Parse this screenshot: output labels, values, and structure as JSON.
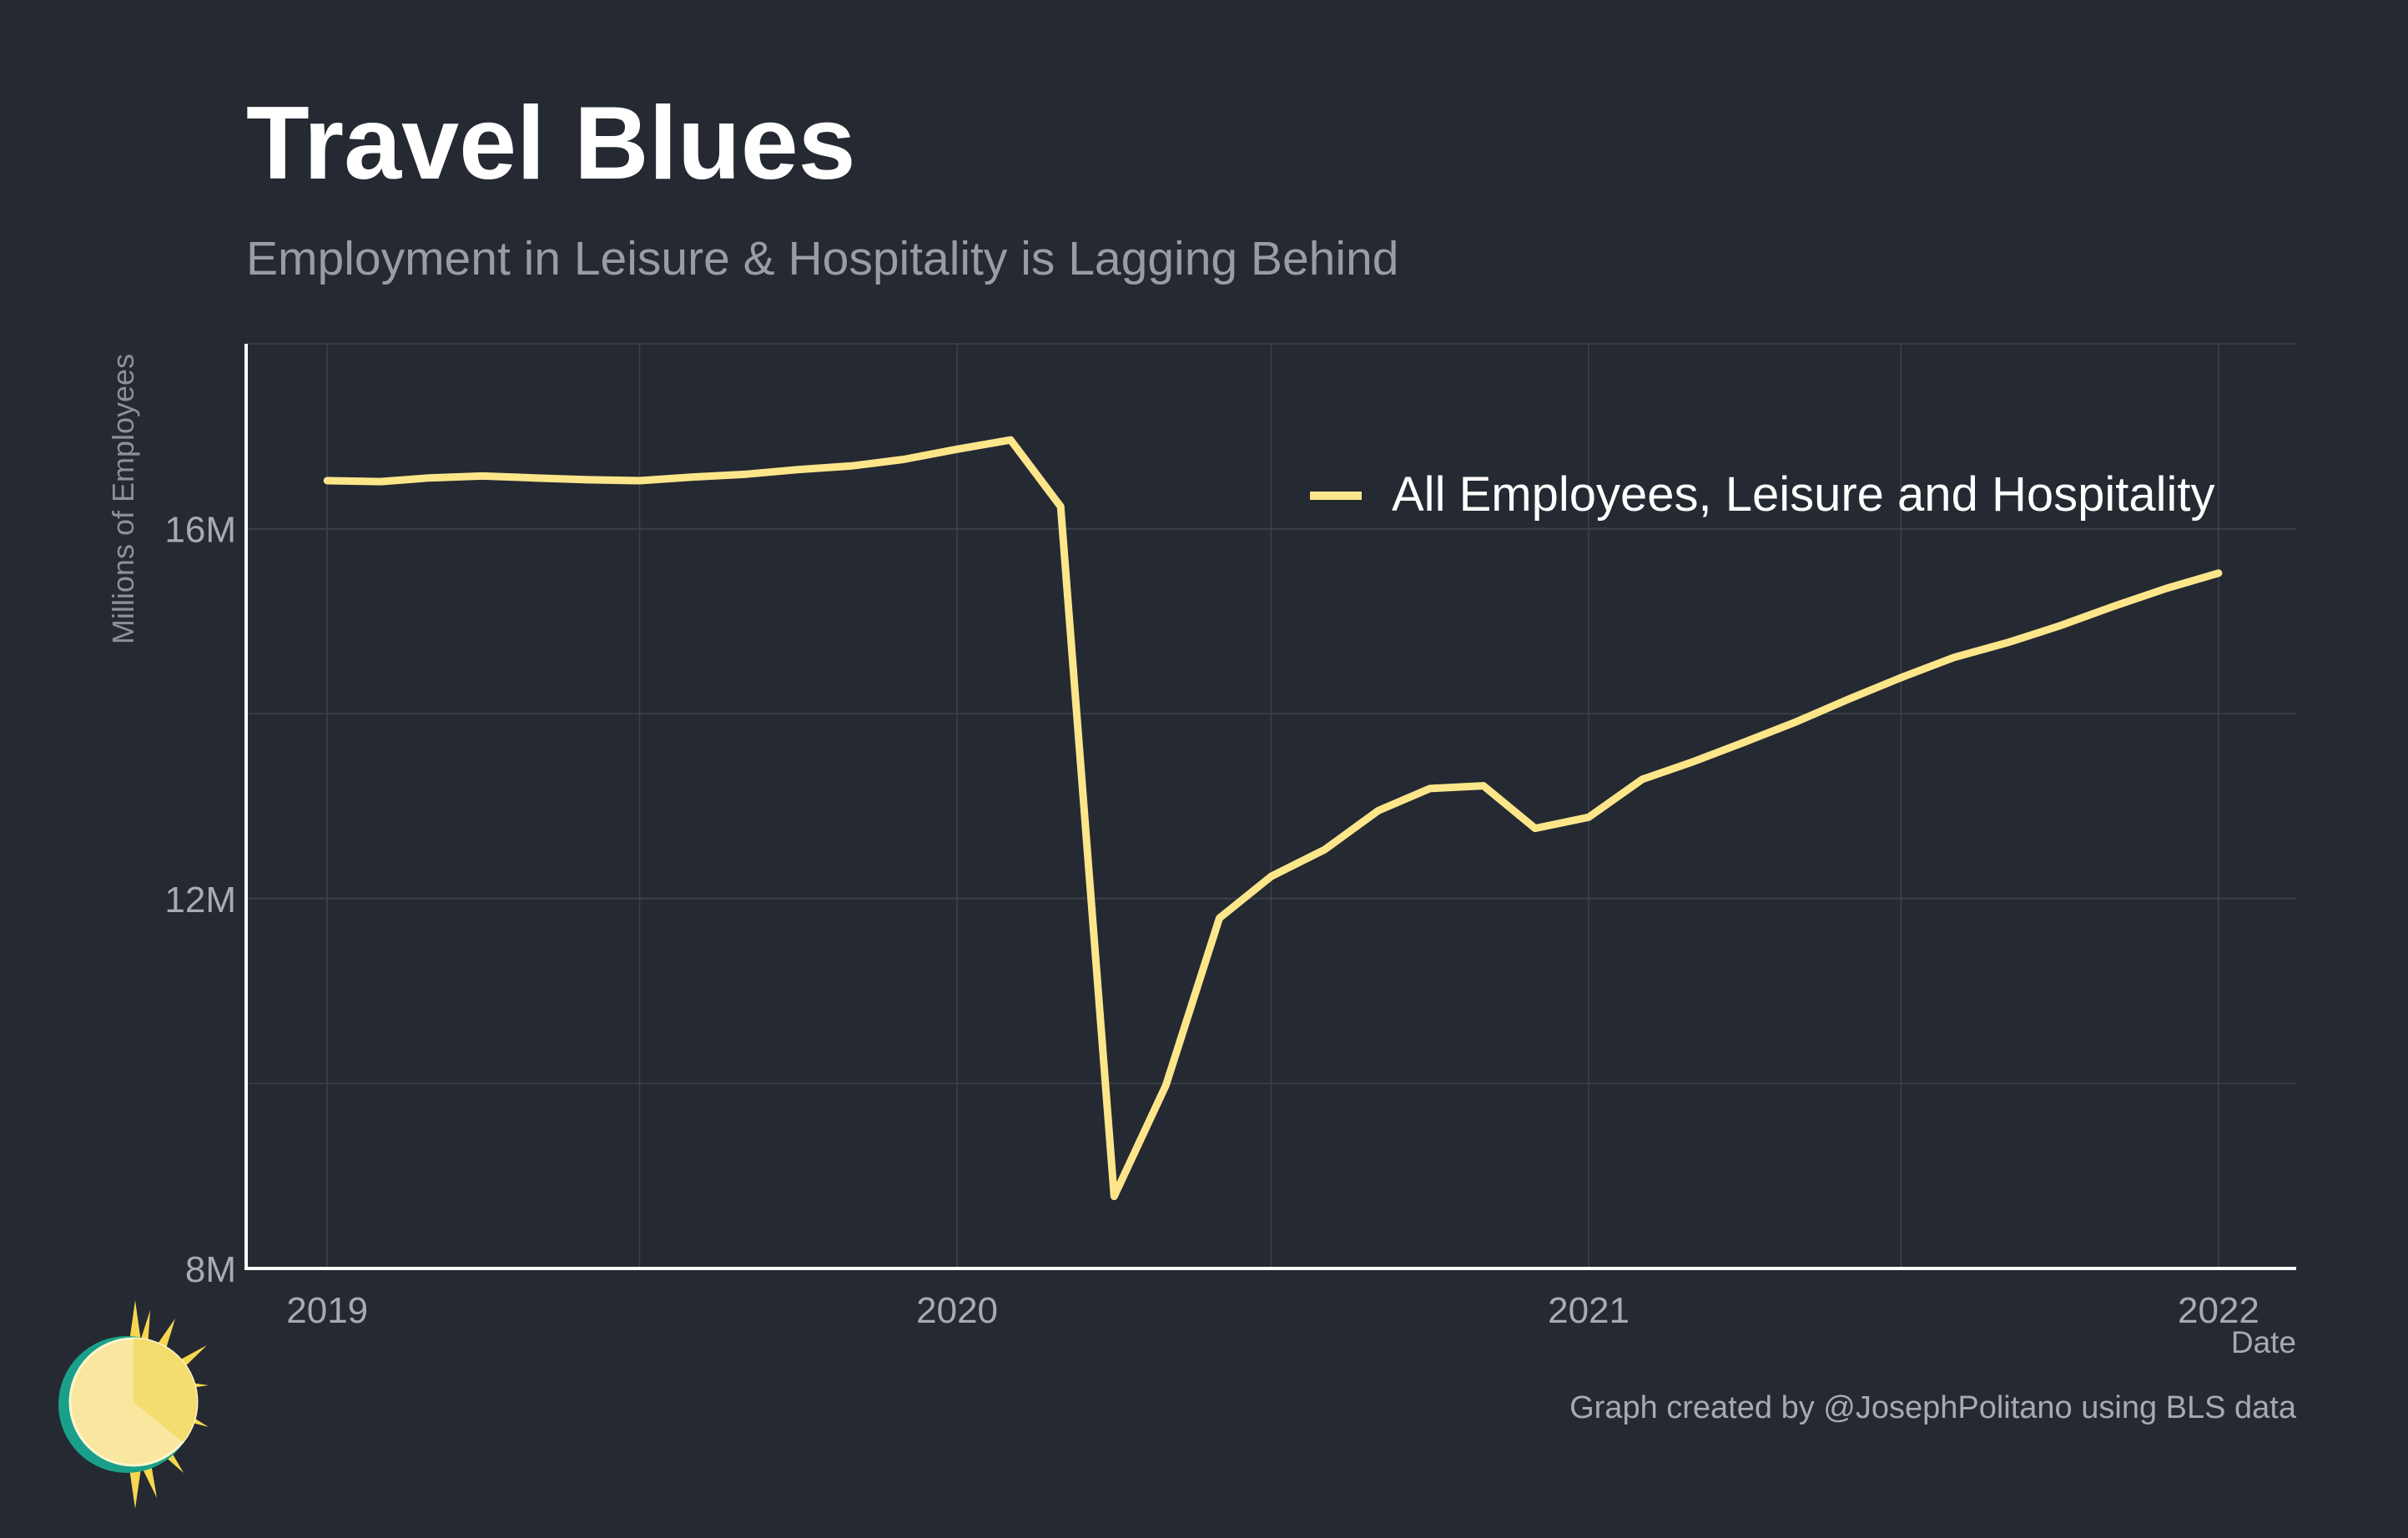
{
  "title": "Travel Blues",
  "subtitle": "Employment in Leisure & Hospitality is Lagging Behind",
  "caption": "Graph created by @JosephPolitano using BLS data",
  "colors": {
    "background": "#252932",
    "line": "#fde68a",
    "grid": "#3d414a",
    "axis": "#ffffff",
    "tick_text": "#a8aab0"
  },
  "chart_data": {
    "type": "line",
    "xlabel": "Date",
    "ylabel": "Millions of Employees",
    "ylim": [
      8,
      18
    ],
    "xlim": [
      "2018-11-15",
      "2022-02-15"
    ],
    "y_ticks": [
      8,
      12,
      16
    ],
    "y_tick_labels": [
      "8M",
      "12M",
      "16M"
    ],
    "x_ticks": [
      "2019-01-01",
      "2020-01-01",
      "2021-01-01",
      "2022-01-01"
    ],
    "x_tick_labels": [
      "2019",
      "2020",
      "2021",
      "2022"
    ],
    "grid": true,
    "legend_position": "top-right",
    "series": [
      {
        "name": "All Employees, Leisure and Hospitality",
        "color": "#fde68a",
        "x": [
          "2019-01",
          "2019-02",
          "2019-03",
          "2019-04",
          "2019-05",
          "2019-06",
          "2019-07",
          "2019-08",
          "2019-09",
          "2019-10",
          "2019-11",
          "2019-12",
          "2020-01",
          "2020-02",
          "2020-03",
          "2020-04",
          "2020-05",
          "2020-06",
          "2020-07",
          "2020-08",
          "2020-09",
          "2020-10",
          "2020-11",
          "2020-12",
          "2021-01",
          "2021-02",
          "2021-03",
          "2021-04",
          "2021-05",
          "2021-06",
          "2021-07",
          "2021-08",
          "2021-09",
          "2021-10",
          "2021-11",
          "2021-12",
          "2022-01"
        ],
        "values": [
          16.52,
          16.51,
          16.55,
          16.57,
          16.55,
          16.53,
          16.52,
          16.56,
          16.59,
          16.64,
          16.68,
          16.75,
          16.86,
          16.96,
          16.24,
          8.78,
          9.98,
          11.79,
          12.24,
          12.53,
          12.95,
          13.19,
          13.22,
          12.76,
          12.88,
          13.29,
          13.47,
          13.69,
          13.91,
          14.16,
          14.39,
          14.61,
          14.77,
          14.95,
          15.16,
          15.35,
          15.52
        ]
      }
    ]
  }
}
